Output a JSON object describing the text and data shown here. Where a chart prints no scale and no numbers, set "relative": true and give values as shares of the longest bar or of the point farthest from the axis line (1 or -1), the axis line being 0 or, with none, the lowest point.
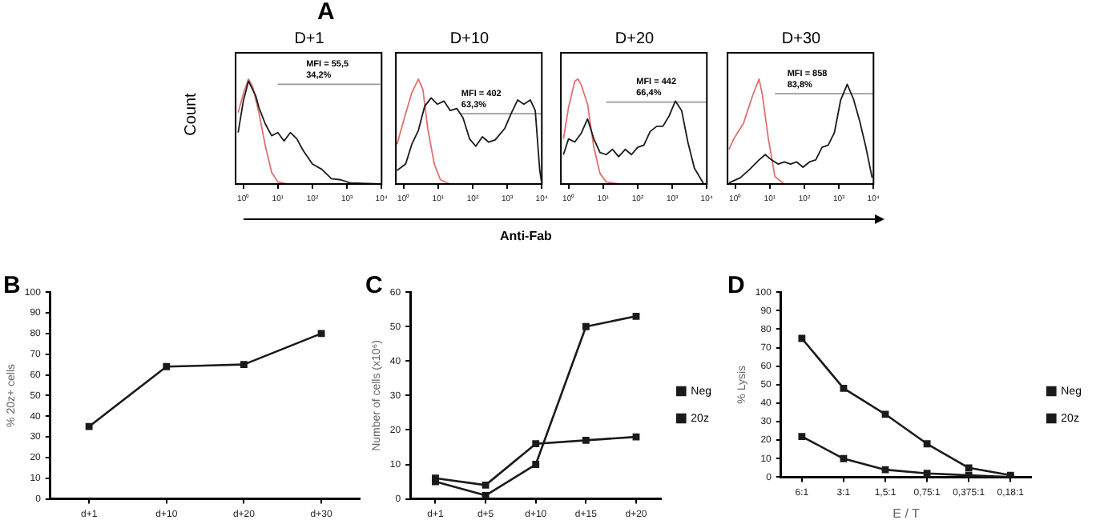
{
  "chart_data": [
    {
      "type": "line",
      "title": "D+1",
      "ylabel": "Count",
      "relative": true,
      "log": "x",
      "xlim": [
        0.6,
        10000
      ],
      "xticks": [
        {
          "value": 1,
          "label": "10⁰"
        },
        {
          "value": 10,
          "label": "10¹"
        },
        {
          "value": 100,
          "label": "10²"
        },
        {
          "value": 1000,
          "label": "10³"
        },
        {
          "value": 10000,
          "label": "10⁴"
        }
      ],
      "grid": false,
      "legend": false,
      "annotations": [
        "A",
        {
          "text": "MFI = 55,5\n34,2%",
          "x": 66,
          "y": 0.95
        }
      ],
      "series": [
        {
          "color": "#1a1a1a",
          "x": [
            0.71,
            1,
            1.41,
            1.86,
            2.29,
            2.82,
            4.37,
            6.61,
            10,
            15.1,
            22.9,
            35.5,
            53.7,
            100,
            186,
            355,
            661,
            1230,
            9120
          ],
          "values": [
            0.49,
            0.79,
            0.98,
            0.9,
            0.84,
            0.73,
            0.57,
            0.46,
            0.49,
            0.41,
            0.49,
            0.43,
            0.32,
            0.19,
            0.14,
            0.05,
            0.04,
            0.01,
            0
          ]
        },
        {
          "color": "#e07070",
          "x": [
            0.71,
            1,
            1.41,
            1.86,
            2.82,
            4.37,
            6.61,
            10,
            18.6
          ],
          "values": [
            0.68,
            0.86,
            1,
            0.93,
            0.68,
            0.36,
            0.11,
            0.02,
            0
          ]
        },
        {
          "color": "#999999",
          "x": [
            10,
            9120
          ],
          "values": [
            0.95,
            0.95
          ]
        }
      ]
    },
    {
      "type": "line",
      "title": "D+10",
      "xlabel": "Anti-Fab",
      "relative": true,
      "log": "x",
      "xlim": [
        0.6,
        10000
      ],
      "xticks": [
        {
          "value": 1,
          "label": "10⁰"
        },
        {
          "value": 10,
          "label": "10¹"
        },
        {
          "value": 100,
          "label": "10²"
        },
        {
          "value": 1000,
          "label": "10³"
        },
        {
          "value": 10000,
          "label": "10⁴"
        }
      ],
      "grid": false,
      "legend": false,
      "annotations": [
        {
          "text": "MFI = 402\n63,3%",
          "x": 47,
          "y": 0.67
        }
      ],
      "series": [
        {
          "color": "#1a1a1a",
          "x": [
            0.65,
            1.15,
            1.74,
            2.69,
            4.07,
            6.31,
            9.55,
            14.8,
            22.4,
            34.7,
            52.5,
            81.3,
            123,
            191,
            288,
            447,
            851,
            1288,
            1995,
            3020,
            4677,
            6457,
            8710,
            10000
          ],
          "values": [
            0.13,
            0.19,
            0.38,
            0.51,
            0.74,
            0.82,
            0.76,
            0.79,
            0.7,
            0.72,
            0.63,
            0.43,
            0.36,
            0.45,
            0.4,
            0.42,
            0.53,
            0.67,
            0.8,
            0.76,
            0.8,
            0.7,
            0.13,
            0
          ]
        },
        {
          "color": "#e07070",
          "x": [
            0.65,
            1.15,
            1.74,
            2.69,
            3.63,
            5.01,
            7.76,
            11.7,
            22.4
          ],
          "values": [
            0.38,
            0.67,
            0.87,
            1,
            0.9,
            0.53,
            0.19,
            0.04,
            0
          ]
        },
        {
          "color": "#999999",
          "x": [
            43,
            10000
          ],
          "values": [
            0.67,
            0.67
          ]
        }
      ]
    },
    {
      "type": "line",
      "title": "D+20",
      "relative": true,
      "log": "x",
      "xlim": [
        0.6,
        10000
      ],
      "xticks": [
        {
          "value": 1,
          "label": "10⁰"
        },
        {
          "value": 10,
          "label": "10¹"
        },
        {
          "value": 100,
          "label": "10²"
        },
        {
          "value": 1000,
          "label": "10³"
        },
        {
          "value": 10000,
          "label": "10⁴"
        }
      ],
      "grid": false,
      "legend": false,
      "annotations": [
        {
          "text": "MFI = 442\n66,4%",
          "x": 91,
          "y": 0.78
        }
      ],
      "series": [
        {
          "color": "#1a1a1a",
          "x": [
            0.71,
            1,
            1.51,
            2.29,
            3.55,
            5.37,
            8.13,
            12.3,
            18.6,
            28.2,
            43.7,
            66.1,
            100,
            151,
            229,
            355,
            537,
            813,
            1230,
            1862,
            2818,
            4365,
            8128
          ],
          "values": [
            0.28,
            0.43,
            0.4,
            0.48,
            0.62,
            0.43,
            0.3,
            0.28,
            0.33,
            0.26,
            0.33,
            0.28,
            0.35,
            0.37,
            0.5,
            0.55,
            0.55,
            0.65,
            0.79,
            0.7,
            0.4,
            0.15,
            0
          ]
        },
        {
          "color": "#e07070",
          "x": [
            0.71,
            1,
            1.51,
            1.86,
            2.29,
            3.55,
            5.37,
            8.13,
            12.3,
            28.2
          ],
          "values": [
            0.43,
            0.73,
            0.98,
            1,
            0.95,
            0.76,
            0.35,
            0.1,
            0.02,
            0
          ]
        },
        {
          "color": "#999999",
          "x": [
            12.3,
            10000
          ],
          "values": [
            0.78,
            0.78
          ]
        }
      ]
    },
    {
      "type": "line",
      "title": "D+30",
      "relative": true,
      "log": "x",
      "xlim": [
        0.6,
        10000
      ],
      "xticks": [
        {
          "value": 1,
          "label": "10⁰"
        },
        {
          "value": 10,
          "label": "10¹"
        },
        {
          "value": 100,
          "label": "10²"
        },
        {
          "value": 1000,
          "label": "10³"
        },
        {
          "value": 10000,
          "label": "10⁴"
        }
      ],
      "grid": false,
      "legend": false,
      "annotations": [
        {
          "text": "MFI = 858\n83,8%",
          "x": 32,
          "y": 0.86
        }
      ],
      "series": [
        {
          "color": "#1a1a1a",
          "x": [
            0.66,
            1.41,
            2.63,
            4.9,
            7.41,
            11.2,
            17.4,
            26.3,
            39.8,
            60.3,
            91.2,
            141,
            214,
            324,
            490,
            741,
            1122,
            1738,
            2630,
            3981,
            6026,
            9120
          ],
          "values": [
            0.01,
            0.06,
            0.14,
            0.23,
            0.28,
            0.23,
            0.19,
            0.21,
            0.19,
            0.21,
            0.16,
            0.21,
            0.23,
            0.35,
            0.37,
            0.49,
            0.8,
            0.95,
            0.81,
            0.6,
            0.35,
            0.06
          ]
        },
        {
          "color": "#e07070",
          "x": [
            0.66,
            0.91,
            1.74,
            3.24,
            4.9,
            6.03,
            9.12,
            14.1,
            26.3
          ],
          "values": [
            0.33,
            0.43,
            0.58,
            0.85,
            1,
            0.86,
            0.43,
            0.07,
            0
          ]
        },
        {
          "color": "#999999",
          "x": [
            14.1,
            10000
          ],
          "values": [
            0.86,
            0.86
          ]
        }
      ]
    },
    {
      "type": "line",
      "ylabel": "% 20z+ cells",
      "categories": [
        "d+1",
        "d+10",
        "d+20",
        "d+30"
      ],
      "ylim": [
        0,
        100
      ],
      "yticks": [
        0,
        10,
        20,
        30,
        40,
        50,
        60,
        70,
        80,
        90,
        100
      ],
      "grid": false,
      "legend": false,
      "marker": "square",
      "annotations": [
        "B"
      ],
      "series": [
        {
          "color": "#1a1a1a",
          "values": [
            35,
            64,
            65,
            80
          ]
        }
      ]
    },
    {
      "type": "line",
      "ylabel": "Number of cells (x10⁶)",
      "categories": [
        "d+1",
        "d+5",
        "d+10",
        "d+15",
        "d+20"
      ],
      "ylim": [
        0,
        60
      ],
      "yticks": [
        0,
        10,
        20,
        30,
        40,
        50,
        60
      ],
      "grid": false,
      "legend": "right",
      "marker": "square",
      "annotations": [
        "C"
      ],
      "series": [
        {
          "name": "Neg",
          "color": "#1a1a1a",
          "values": [
            6,
            4,
            16,
            17,
            18
          ]
        },
        {
          "name": "20z",
          "color": "#1a1a1a",
          "values": [
            5,
            1,
            10,
            50,
            53
          ]
        }
      ]
    },
    {
      "type": "line",
      "ylabel": "% Lysis",
      "xlabel": "E / T",
      "categories": [
        "6:1",
        "3:1",
        "1,5:1",
        "0,75:1",
        "0,375:1",
        "0,18:1"
      ],
      "ylim": [
        0,
        100
      ],
      "yticks": [
        0,
        10,
        20,
        30,
        40,
        50,
        60,
        70,
        80,
        90,
        100
      ],
      "grid": false,
      "legend": "right",
      "marker": "square",
      "annotations": [
        "D"
      ],
      "series": [
        {
          "name": "Neg",
          "color": "#1a1a1a",
          "values": [
            22,
            10,
            4,
            2,
            1,
            0
          ]
        },
        {
          "name": "20z",
          "color": "#1a1a1a",
          "values": [
            75,
            48,
            34,
            18,
            5,
            1
          ]
        }
      ]
    }
  ]
}
